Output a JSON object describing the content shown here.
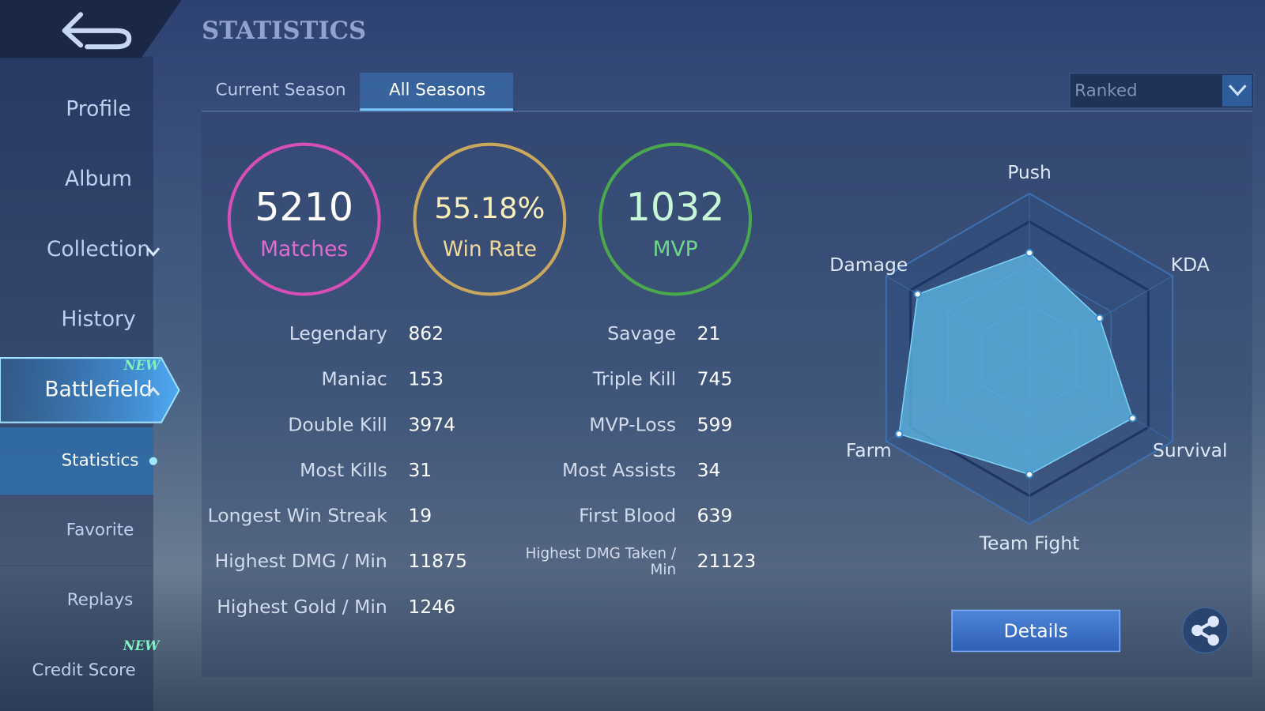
{
  "header": {
    "title": "STATISTICS"
  },
  "sidebar": {
    "items": [
      {
        "label": "Profile"
      },
      {
        "label": "Album"
      },
      {
        "label": "Collection"
      },
      {
        "label": "History"
      },
      {
        "label": "Battlefield",
        "badge": "NEW"
      },
      {
        "label": "Statistics"
      },
      {
        "label": "Favorite"
      },
      {
        "label": "Replays"
      },
      {
        "label": "Credit Score",
        "badge": "NEW"
      }
    ]
  },
  "tabs": [
    "Current Season",
    "All Seasons"
  ],
  "mode": "Ranked",
  "summary": [
    {
      "value": 5210,
      "label": "Matches"
    },
    {
      "value": "55.18%",
      "label": "Win Rate"
    },
    {
      "value": 1032,
      "label": "MVP"
    }
  ],
  "stats": {
    "left": [
      {
        "label": "Legendary",
        "value": 862
      },
      {
        "label": "Maniac",
        "value": 153
      },
      {
        "label": "Double Kill",
        "value": 3974
      },
      {
        "label": "Most Kills",
        "value": 31
      },
      {
        "label": "Longest Win Streak",
        "value": 19
      },
      {
        "label": "Highest DMG / Min",
        "value": 11875
      },
      {
        "label": "Highest Gold / Min",
        "value": 1246
      }
    ],
    "right": [
      {
        "label": "Savage",
        "value": 21
      },
      {
        "label": "Triple Kill",
        "value": 745
      },
      {
        "label": "MVP-Loss",
        "value": 599
      },
      {
        "label": "Most Assists",
        "value": 34
      },
      {
        "label": "First Blood",
        "value": 639
      },
      {
        "label": "Highest DMG Taken / Min",
        "value": 21123
      }
    ]
  },
  "radar": {
    "axes": [
      "Push",
      "KDA",
      "Survival",
      "Team Fight",
      "Farm",
      "Damage"
    ],
    "values": [
      64,
      49,
      72,
      70,
      91,
      78
    ],
    "rlim": [
      0,
      100
    ]
  },
  "buttons": {
    "details": "Details"
  }
}
